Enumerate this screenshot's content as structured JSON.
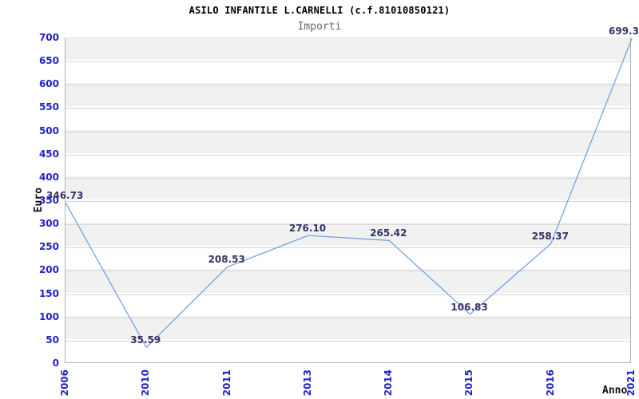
{
  "chart_data": {
    "type": "line",
    "title": "ASILO INFANTILE L.CARNELLI (c.f.81010850121)",
    "subtitle": "Importi",
    "xlabel": "Anno",
    "ylabel": "Euro",
    "categories": [
      "2006",
      "2010",
      "2011",
      "2013",
      "2014",
      "2015",
      "2016",
      "2021"
    ],
    "series": [
      {
        "name": "Importi",
        "values": [
          346.73,
          35.59,
          208.53,
          276.1,
          265.42,
          106.83,
          258.37,
          699.3
        ]
      }
    ],
    "point_labels": [
      "346.73",
      "35.59",
      "208.53",
      "276.10",
      "265.42",
      "106.83",
      "258.37",
      "699.3"
    ],
    "ylim": [
      0,
      700
    ],
    "ytick_step": 50,
    "grid": true,
    "legend": "none",
    "band_fill": "alternating-horizontal",
    "colors": {
      "line": "#74a3e0",
      "tick_label": "#2222cc",
      "point_label": "#333366",
      "band": "#f1f1f1",
      "gridline": "#d6d6d6",
      "plot_border": "#b3b3b3",
      "title": "#000000",
      "subtitle": "#666666",
      "axis_title": "#111111"
    }
  }
}
